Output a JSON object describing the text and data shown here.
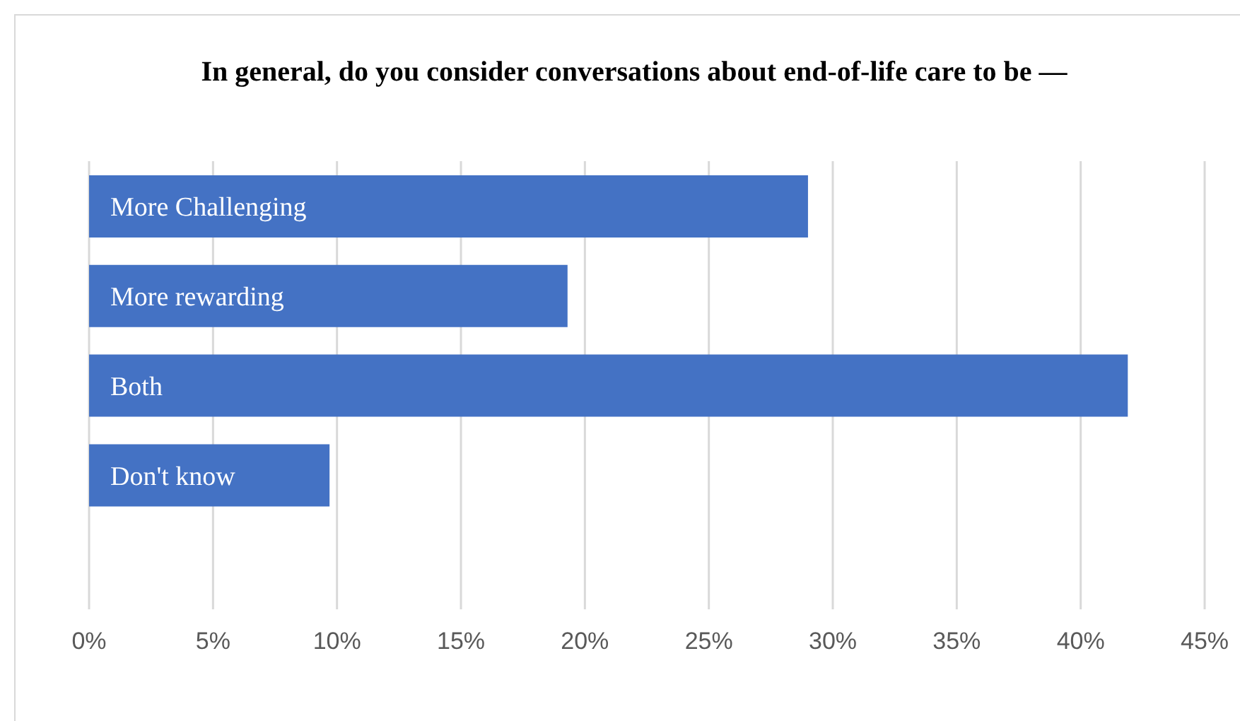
{
  "chart_data": {
    "type": "bar",
    "orientation": "horizontal",
    "title": "In general, do you consider conversations about end-of-life care to be —",
    "categories": [
      "More Challenging",
      "More rewarding",
      "Both",
      "Don't know"
    ],
    "values": [
      29.0,
      19.3,
      41.9,
      9.7
    ],
    "color": "#4472c4",
    "xlim": [
      0,
      45
    ],
    "xticks": [
      {
        "value": 0,
        "label": "0%"
      },
      {
        "value": 5,
        "label": "5%"
      },
      {
        "value": 10,
        "label": "10%"
      },
      {
        "value": 15,
        "label": "15%"
      },
      {
        "value": 20,
        "label": "20%"
      },
      {
        "value": 25,
        "label": "25%"
      },
      {
        "value": 30,
        "label": "30%"
      },
      {
        "value": 35,
        "label": "35%"
      },
      {
        "value": 40,
        "label": "40%"
      },
      {
        "value": 45,
        "label": "45%"
      }
    ],
    "grid": "x",
    "legend": false
  }
}
